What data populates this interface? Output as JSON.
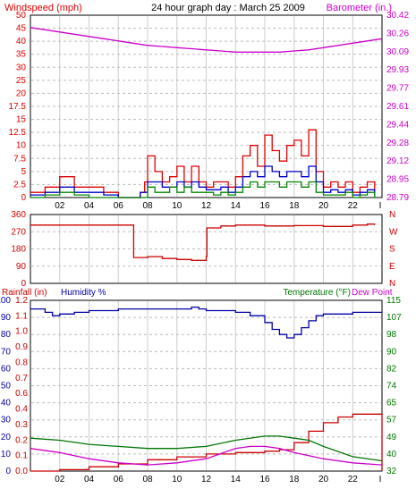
{
  "charts": {
    "wind_baro": {
      "title": "24 hour graph day : March 25 2009",
      "left_label": "Windspeed (mph)",
      "right_label": "Barometer (in.)",
      "x_ticks": [
        "02",
        "04",
        "06",
        "08",
        "10",
        "12",
        "14",
        "16",
        "18",
        "20",
        "22",
        "I"
      ],
      "left_ticks": [
        "0",
        "2.5",
        "5",
        "7.5",
        "10",
        "12.5",
        "15",
        "17.5",
        "20",
        "25",
        "30",
        "35",
        "40",
        "45",
        "50"
      ],
      "right_ticks": [
        "28.79",
        "28.95",
        "29.12",
        "29.28",
        "29.44",
        "29.61",
        "29.77",
        "29.93",
        "30.09",
        "30.26",
        "30.42"
      ],
      "colors": {
        "wind_gust": "#e00000",
        "wind_avg": "#0000cc",
        "wind_low": "#008800",
        "barometer": "#cc00cc"
      }
    },
    "direction": {
      "left_ticks": [
        "0",
        "90",
        "180",
        "270",
        "360"
      ],
      "right_ticks": [
        "N",
        "E",
        "S",
        "W",
        "N"
      ],
      "color": "#cc0000"
    },
    "rain_temp": {
      "left_label_a": "Rainfall (in)",
      "left_label_b": "Humidity %",
      "right_label_a": "Temperature (°F)",
      "right_label_b": "Dew Point",
      "x_ticks": [
        "02",
        "04",
        "06",
        "08",
        "10",
        "12",
        "14",
        "16",
        "18",
        "20",
        "22",
        "I"
      ],
      "humidity_ticks": [
        "0",
        "10",
        "20",
        "30",
        "40",
        "50",
        "60",
        "70",
        "80",
        "90",
        "100"
      ],
      "rain_ticks": [
        "0.0",
        "0.1",
        "0.2",
        "0.3",
        "0.4",
        "0.6",
        "0.7",
        "0.8",
        "0.9",
        "1.0",
        "1.1",
        "1.2"
      ],
      "temp_ticks": [
        "32",
        "40",
        "49",
        "57",
        "65",
        "74",
        "82",
        "90",
        "98",
        "107",
        "115"
      ],
      "colors": {
        "rain": "#cc0000",
        "humidity": "#0000aa",
        "temperature": "#007700",
        "dewpoint": "#cc00cc"
      }
    }
  },
  "chart_data": [
    {
      "type": "line",
      "title": "24 hour graph day : March 25 2009",
      "ylabel": "Windspeed (mph)",
      "y2label": "Barometer (in.)",
      "xlim": [
        0,
        24
      ],
      "ylim": [
        0,
        50
      ],
      "y2lim": [
        28.79,
        30.42
      ],
      "grid": true,
      "series": [
        {
          "x": [
            0,
            1,
            2,
            3,
            4,
            5,
            6,
            7,
            7.5,
            7.8,
            8,
            8.5,
            9,
            9.5,
            10,
            10.5,
            11,
            11.5,
            12,
            12.5,
            13,
            13.5,
            14,
            14.5,
            15,
            15.5,
            16,
            16.5,
            17,
            17.5,
            18,
            18.5,
            19,
            19.5,
            20,
            20.5,
            21,
            21.5,
            22,
            22.5,
            23,
            23.5
          ],
          "y": [
            1,
            2,
            4,
            2,
            2,
            1,
            0,
            0,
            1,
            3,
            8,
            5,
            3,
            4,
            6,
            3,
            6,
            3,
            2,
            3,
            3,
            2,
            4,
            8,
            10,
            6,
            12,
            9,
            7,
            10,
            11,
            8,
            13,
            5,
            2,
            3,
            2,
            3,
            1,
            2,
            3,
            1
          ]
        },
        {
          "x": [
            0,
            1,
            2,
            3,
            4,
            5,
            6,
            7,
            7.5,
            8,
            8.5,
            9,
            9.5,
            10,
            10.5,
            11,
            11.5,
            12,
            12.5,
            13,
            13.5,
            14,
            14.5,
            15,
            15.5,
            16,
            16.5,
            17,
            17.5,
            18,
            18.5,
            19,
            19.5,
            20,
            20.5,
            21,
            21.5,
            22,
            22.5,
            23,
            23.5
          ],
          "y": [
            0.5,
            1,
            2,
            1,
            1,
            0.5,
            0,
            0,
            1,
            3,
            3,
            2,
            2,
            3,
            2,
            3,
            2,
            1.5,
            1.5,
            2,
            1,
            2,
            4,
            5,
            4,
            6,
            5,
            4,
            5,
            5,
            4,
            6,
            3,
            1,
            1.5,
            1,
            1.5,
            0.5,
            1,
            1.5,
            0.5
          ]
        },
        {
          "x": [
            0,
            1,
            2,
            3,
            4,
            5,
            6,
            7,
            7.5,
            8,
            8.5,
            9,
            9.5,
            10,
            10.5,
            11,
            11.5,
            12,
            12.5,
            13,
            13.5,
            14,
            14.5,
            15,
            15.5,
            16,
            16.5,
            17,
            17.5,
            18,
            18.5,
            19,
            19.5,
            20,
            20.5,
            21,
            21.5,
            22,
            22.5,
            23,
            23.5
          ],
          "y": [
            0,
            0.5,
            1,
            0.5,
            0,
            0,
            0,
            0,
            0,
            2,
            1,
            1,
            2,
            1,
            2,
            1,
            1,
            1,
            0.5,
            1,
            0.5,
            1,
            2,
            3,
            2,
            3,
            3,
            2,
            3,
            3,
            2,
            3,
            1,
            0.5,
            0.5,
            0.5,
            1,
            0,
            0.5,
            1,
            0
          ]
        },
        {
          "x": [
            0,
            1,
            2,
            3,
            4,
            5,
            6,
            7,
            8,
            9,
            10,
            11,
            12,
            13,
            14,
            15,
            16,
            17,
            18,
            19,
            20,
            21,
            22,
            23,
            24
          ],
          "y": [
            30.31,
            30.29,
            30.27,
            30.25,
            30.23,
            30.21,
            30.19,
            30.17,
            30.15,
            30.14,
            30.13,
            30.12,
            30.11,
            30.1,
            30.09,
            30.09,
            30.09,
            30.09,
            30.1,
            30.11,
            30.13,
            30.15,
            30.17,
            30.19,
            30.21
          ]
        }
      ]
    },
    {
      "type": "line",
      "ylabel": "Wind direction",
      "xlim": [
        0,
        24
      ],
      "ylim": [
        0,
        360
      ],
      "series": [
        {
          "x": [
            0,
            2,
            4,
            6,
            7,
            7.05,
            8,
            9,
            10,
            11,
            12,
            12.05,
            13,
            14,
            16,
            18,
            20,
            22,
            23,
            23.5
          ],
          "y": [
            305,
            305,
            305,
            305,
            305,
            135,
            140,
            130,
            125,
            120,
            140,
            290,
            300,
            305,
            300,
            302,
            298,
            305,
            310,
            305
          ]
        }
      ]
    },
    {
      "type": "line",
      "xlim": [
        0,
        24
      ],
      "ylim": [
        0,
        100
      ],
      "series": [
        {
          "x": [
            0,
            1,
            1.5,
            2,
            3,
            4,
            6,
            8,
            10,
            11,
            11.5,
            12,
            13,
            14,
            15,
            16,
            16.5,
            17,
            17.5,
            18,
            18.5,
            19,
            19.5,
            20,
            22,
            24
          ],
          "y": [
            95,
            93,
            91,
            92,
            93,
            94,
            95,
            95,
            95,
            96,
            95,
            94,
            94,
            93,
            91,
            87,
            83,
            80,
            78,
            80,
            84,
            88,
            91,
            92,
            93,
            93
          ]
        },
        {
          "x": [
            0,
            2,
            4,
            6,
            8,
            10,
            12,
            14,
            16,
            17,
            18,
            19,
            20,
            21,
            22,
            23,
            23.8,
            24
          ],
          "y": [
            0,
            0.01,
            0.03,
            0.05,
            0.08,
            0.1,
            0.12,
            0.13,
            0.14,
            0.15,
            0.2,
            0.28,
            0.34,
            0.38,
            0.4,
            0.4,
            0.4,
            0.0
          ]
        },
        {
          "x": [
            0,
            2,
            4,
            6,
            8,
            10,
            12,
            14,
            16,
            17,
            18,
            19,
            20,
            22,
            24
          ],
          "y": [
            48,
            47,
            45,
            44,
            43,
            43,
            44,
            47,
            49,
            49,
            48,
            47,
            44,
            39,
            37
          ]
        },
        {
          "x": [
            0,
            2,
            4,
            6,
            8,
            10,
            12,
            14,
            15,
            16,
            17,
            18,
            20,
            22,
            24
          ],
          "y": [
            43,
            41,
            38,
            36,
            35,
            36,
            38,
            43,
            44,
            44,
            43,
            41,
            38,
            36,
            35
          ]
        }
      ]
    }
  ]
}
